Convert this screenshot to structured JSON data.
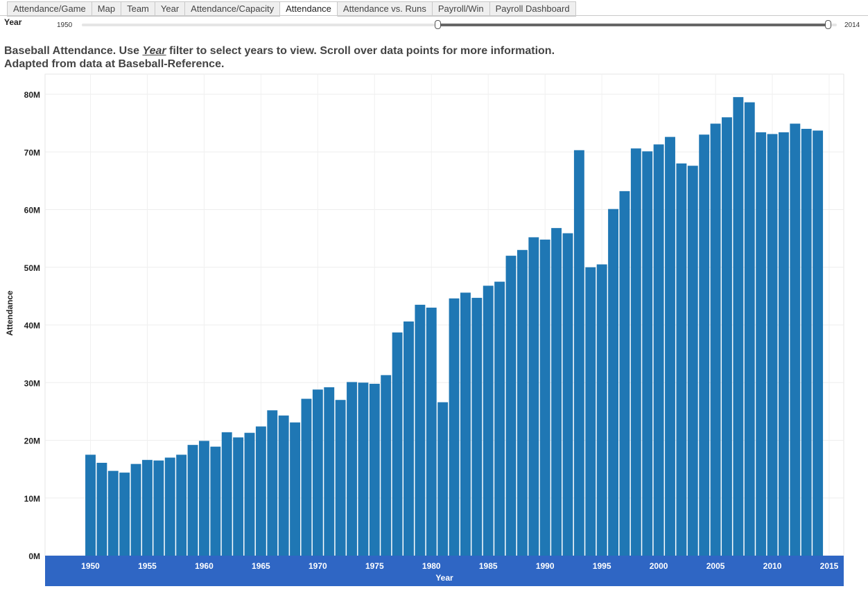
{
  "tabs": [
    "Attendance/Game",
    "Map",
    "Team",
    "Year",
    "Attendance/Capacity",
    "Attendance",
    "Attendance vs. Runs",
    "Payroll/Win",
    "Payroll Dashboard"
  ],
  "active_tab": "Attendance",
  "filter": {
    "title": "Year",
    "range_min_label": "1950",
    "range_max_label": "2014",
    "selected_start": 1950,
    "selected_end": 2014
  },
  "description": {
    "line1_a": "Baseball Attendance. Use ",
    "line1_year": "Year",
    "line1_b": " filter to select years to view. Scroll over data points for more information.",
    "line2": "Adapted from data at Baseball-Reference."
  },
  "colors": {
    "bar": "#1f77b4",
    "axis_band": "#2f66c4"
  },
  "chart_data": {
    "type": "bar",
    "xlabel": "Year",
    "ylabel": "Attendance",
    "ylim": [
      0,
      80000000
    ],
    "grid": true,
    "y_ticks": [
      {
        "value": 0,
        "label": "0M"
      },
      {
        "value": 10000000,
        "label": "10M"
      },
      {
        "value": 20000000,
        "label": "20M"
      },
      {
        "value": 30000000,
        "label": "30M"
      },
      {
        "value": 40000000,
        "label": "40M"
      },
      {
        "value": 50000000,
        "label": "50M"
      },
      {
        "value": 60000000,
        "label": "60M"
      },
      {
        "value": 70000000,
        "label": "70M"
      },
      {
        "value": 80000000,
        "label": "80M"
      }
    ],
    "x_ticks": [
      "1950",
      "1955",
      "1960",
      "1965",
      "1970",
      "1975",
      "1980",
      "1985",
      "1990",
      "1995",
      "2000",
      "2005",
      "2010",
      "2015"
    ],
    "categories": [
      1950,
      1951,
      1952,
      1953,
      1954,
      1955,
      1956,
      1957,
      1958,
      1959,
      1960,
      1961,
      1962,
      1963,
      1964,
      1965,
      1966,
      1967,
      1968,
      1969,
      1970,
      1971,
      1972,
      1973,
      1974,
      1975,
      1976,
      1977,
      1978,
      1979,
      1980,
      1981,
      1982,
      1983,
      1984,
      1985,
      1986,
      1987,
      1988,
      1989,
      1990,
      1991,
      1992,
      1993,
      1994,
      1995,
      1996,
      1997,
      1998,
      1999,
      2000,
      2001,
      2002,
      2003,
      2004,
      2005,
      2006,
      2007,
      2008,
      2009,
      2010,
      2011,
      2012,
      2013,
      2014
    ],
    "values": [
      17500000,
      16100000,
      14700000,
      14400000,
      15900000,
      16600000,
      16500000,
      17000000,
      17500000,
      19200000,
      19900000,
      18900000,
      21400000,
      20500000,
      21300000,
      22400000,
      25200000,
      24300000,
      23100000,
      27200000,
      28800000,
      29200000,
      27000000,
      30100000,
      30000000,
      29800000,
      31300000,
      38700000,
      40600000,
      43500000,
      43000000,
      26600000,
      44600000,
      45600000,
      44700000,
      46800000,
      47500000,
      52000000,
      53000000,
      55200000,
      54800000,
      56800000,
      55900000,
      70300000,
      50000000,
      50500000,
      60100000,
      63200000,
      70600000,
      70100000,
      71300000,
      72600000,
      68000000,
      67600000,
      73000000,
      74900000,
      76000000,
      79500000,
      78600000,
      73400000,
      73100000,
      73400000,
      74900000,
      74000000,
      73700000
    ]
  }
}
